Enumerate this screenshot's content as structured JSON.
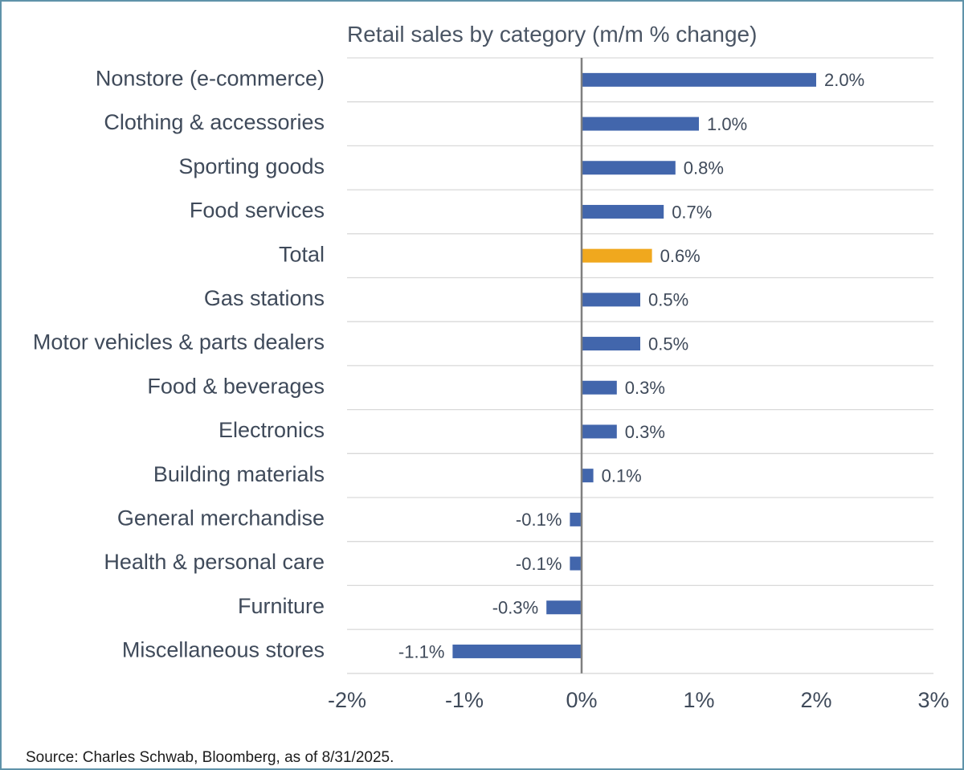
{
  "chart_data": {
    "type": "bar",
    "orientation": "horizontal",
    "title": "Retail sales by category (m/m % change)",
    "categories": [
      "Nonstore (e-commerce)",
      "Clothing & accessories",
      "Sporting goods",
      "Food services",
      "Total",
      "Gas stations",
      "Motor vehicles & parts dealers",
      "Food & beverages",
      "Electronics",
      "Building materials",
      "General merchandise",
      "Health & personal care",
      "Furniture",
      "Miscellaneous stores"
    ],
    "values": [
      2.0,
      1.0,
      0.8,
      0.7,
      0.6,
      0.5,
      0.5,
      0.3,
      0.3,
      0.1,
      -0.1,
      -0.1,
      -0.3,
      -1.1
    ],
    "value_labels": [
      "2.0%",
      "1.0%",
      "0.8%",
      "0.7%",
      "0.6%",
      "0.5%",
      "0.5%",
      "0.3%",
      "0.3%",
      "0.1%",
      "-0.1%",
      "-0.1%",
      "-0.3%",
      "-1.1%"
    ],
    "highlight_category": "Total",
    "xlim": [
      -2,
      3
    ],
    "xticks": [
      -2,
      -1,
      0,
      1,
      2,
      3
    ],
    "xtick_labels": [
      "-2%",
      "-1%",
      "0%",
      "1%",
      "2%",
      "3%"
    ],
    "grid": "horizontal separators",
    "legend": "none",
    "colors": {
      "bar": "#4266ac",
      "highlight": "#f0a81e",
      "zero_line": "#7f7f7f",
      "grid": "#d9d9d9",
      "frame": "#5f93a9"
    }
  },
  "source": "Source: Charles Schwab, Bloomberg, as of 8/31/2025."
}
